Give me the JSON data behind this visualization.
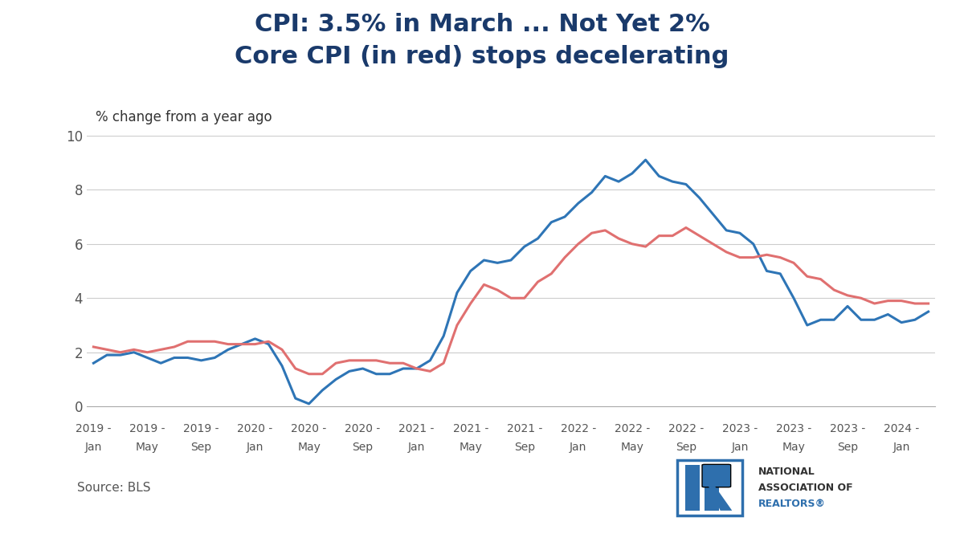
{
  "title_line1": "CPI: 3.5% in March ... Not Yet 2%",
  "title_line2": "Core CPI (in red) stops decelerating",
  "subtitle": "% change from a year ago",
  "source": "Source: BLS",
  "title_color": "#1a3a6b",
  "line_color_cpi": "#2e75b6",
  "line_color_core": "#e07070",
  "background_color": "#ffffff",
  "ylim": [
    0,
    10
  ],
  "yticks": [
    0,
    2,
    4,
    6,
    8,
    10
  ],
  "cpi_all_monthly": [
    1.6,
    1.9,
    1.9,
    2.0,
    1.8,
    1.6,
    1.8,
    1.8,
    1.7,
    1.8,
    2.1,
    2.3,
    2.5,
    2.3,
    1.5,
    0.3,
    0.1,
    0.6,
    1.0,
    1.3,
    1.4,
    1.2,
    1.2,
    1.4,
    1.4,
    1.7,
    2.6,
    4.2,
    5.0,
    5.4,
    5.3,
    5.4,
    5.9,
    6.2,
    6.8,
    7.0,
    7.5,
    7.9,
    8.5,
    8.3,
    8.6,
    9.1,
    8.5,
    8.3,
    8.2,
    7.7,
    7.1,
    6.5,
    6.4,
    6.0,
    5.0,
    4.9,
    4.0,
    3.0,
    3.2,
    3.2,
    3.7,
    3.2,
    3.2,
    3.4,
    3.1,
    3.2,
    3.5
  ],
  "core_cpi_monthly": [
    2.2,
    2.1,
    2.0,
    2.1,
    2.0,
    2.1,
    2.2,
    2.4,
    2.4,
    2.4,
    2.3,
    2.3,
    2.3,
    2.4,
    2.1,
    1.4,
    1.2,
    1.2,
    1.6,
    1.7,
    1.7,
    1.7,
    1.6,
    1.6,
    1.4,
    1.3,
    1.6,
    3.0,
    3.8,
    4.5,
    4.3,
    4.0,
    4.0,
    4.6,
    4.9,
    5.5,
    6.0,
    6.4,
    6.5,
    6.2,
    6.0,
    5.9,
    6.3,
    6.3,
    6.6,
    6.3,
    6.0,
    5.7,
    5.5,
    5.5,
    5.6,
    5.5,
    5.3,
    4.8,
    4.7,
    4.3,
    4.1,
    4.0,
    3.8,
    3.9,
    3.9,
    3.8,
    3.8
  ],
  "xtick_years": [
    2019,
    2019,
    2019,
    2020,
    2020,
    2020,
    2021,
    2021,
    2021,
    2022,
    2022,
    2022,
    2023,
    2023,
    2023,
    2024
  ],
  "xtick_months": [
    "Jan",
    "May",
    "Sep",
    "Jan",
    "May",
    "Sep",
    "Jan",
    "May",
    "Sep",
    "Jan",
    "May",
    "Sep",
    "Jan",
    "May",
    "Sep",
    "Jan"
  ]
}
